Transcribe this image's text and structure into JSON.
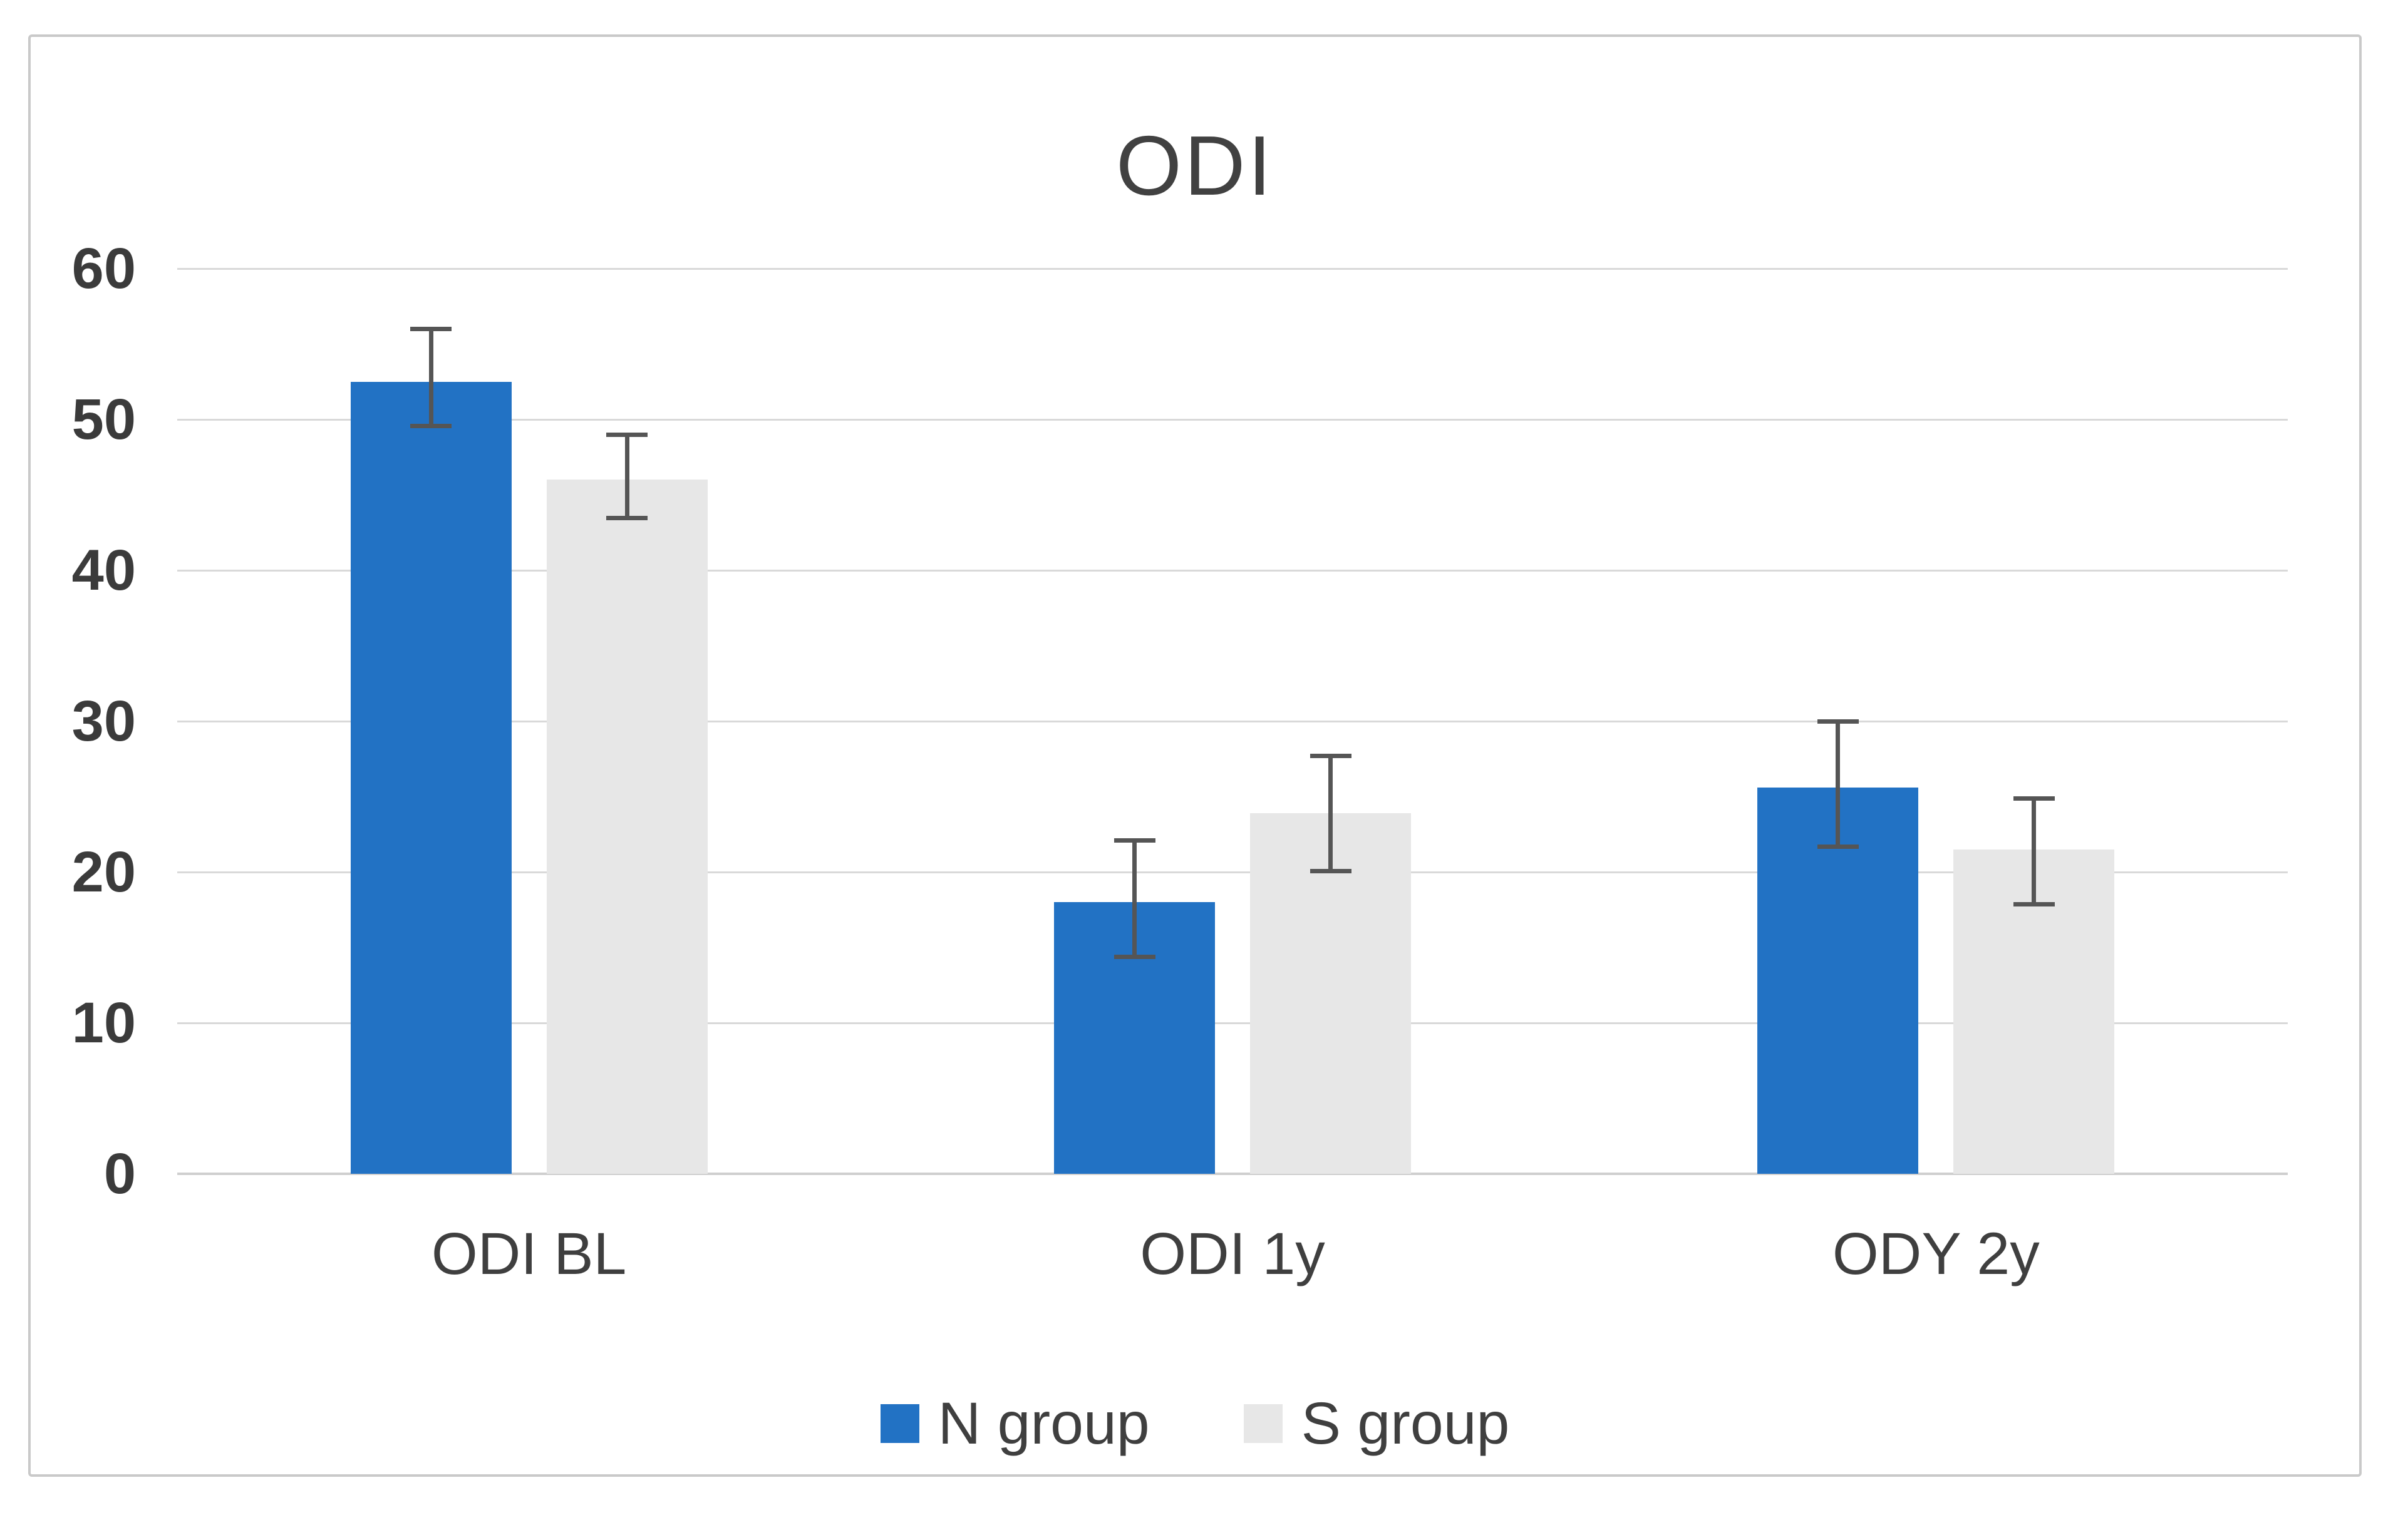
{
  "chart_data": {
    "type": "bar",
    "title": "ODI",
    "categories": [
      "ODI BL",
      "ODI 1y",
      "ODY 2y"
    ],
    "series": [
      {
        "name": "N group",
        "color": "#2272C4",
        "values": [
          52.5,
          18.0,
          25.6
        ],
        "errors_up": [
          3.5,
          4.1,
          4.4
        ],
        "errors_down": [
          2.9,
          3.6,
          3.9
        ]
      },
      {
        "name": "S group",
        "color": "#E7E7E7",
        "values": [
          46.0,
          23.9,
          21.5
        ],
        "errors_up": [
          3.0,
          3.8,
          3.4
        ],
        "errors_down": [
          2.5,
          3.8,
          3.6
        ]
      }
    ],
    "xlabel": "",
    "ylabel": "",
    "ylim": [
      0,
      60
    ],
    "yticks": [
      0,
      10,
      20,
      30,
      40,
      50,
      60
    ],
    "grid": true,
    "error_bars": true,
    "legend_position": "bottom",
    "colors": {
      "gridline": "#D9D9D9",
      "axis_line": "#CFCFCF",
      "error_bar": "#555555",
      "text": "#3F3F3F",
      "frame_border": "#C9C9C9"
    }
  }
}
